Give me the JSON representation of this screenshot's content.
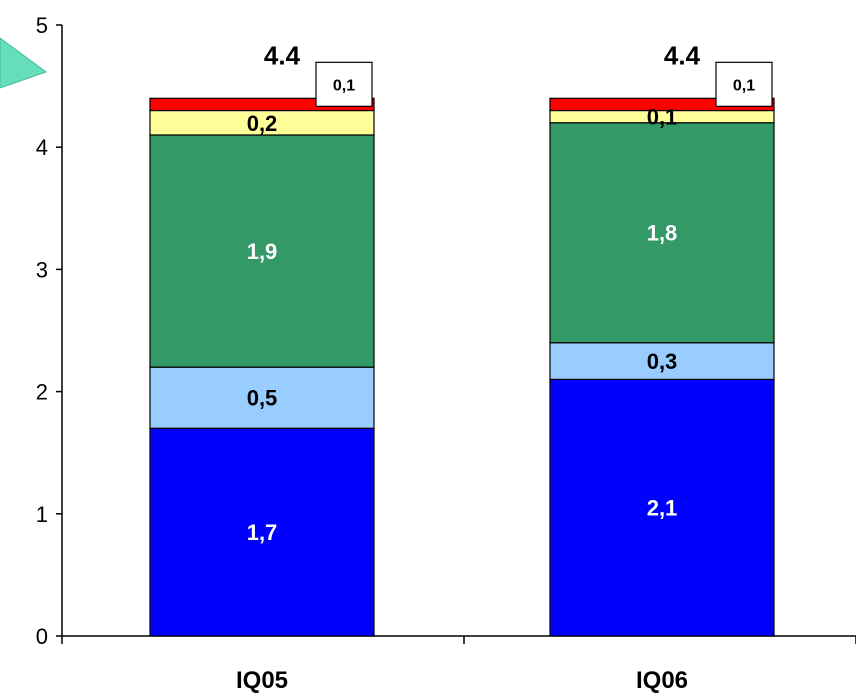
{
  "chart_data": {
    "type": "bar",
    "stacked": true,
    "categories": [
      "IQ05",
      "IQ06"
    ],
    "series": [
      {
        "values": [
          1.7,
          2.1
        ],
        "labels": [
          "1,7",
          "2,1"
        ],
        "color": "#0000ff",
        "label_color": "#ffffff"
      },
      {
        "values": [
          0.5,
          0.3
        ],
        "labels": [
          "0,5",
          "0,3"
        ],
        "color": "#99ccff",
        "label_color": "#000000"
      },
      {
        "values": [
          1.9,
          1.8
        ],
        "labels": [
          "1,9",
          "1,8"
        ],
        "color": "#339966",
        "label_color": "#ffffff"
      },
      {
        "values": [
          0.2,
          0.1
        ],
        "labels": [
          "0,2",
          "0,1"
        ],
        "color": "#ffff99",
        "label_color": "#000000"
      },
      {
        "values": [
          0.1,
          0.1
        ],
        "labels": [
          "0,1",
          "0,1"
        ],
        "color": "#ff0000",
        "label_color": "#000000",
        "callout": true
      }
    ],
    "totals": [
      "4.4",
      "4.4"
    ],
    "yticks": [
      "0",
      "1",
      "2",
      "3",
      "4",
      "5"
    ],
    "ylim": [
      0,
      5
    ],
    "grid": false,
    "title": "",
    "xlabel": "",
    "ylabel": ""
  }
}
